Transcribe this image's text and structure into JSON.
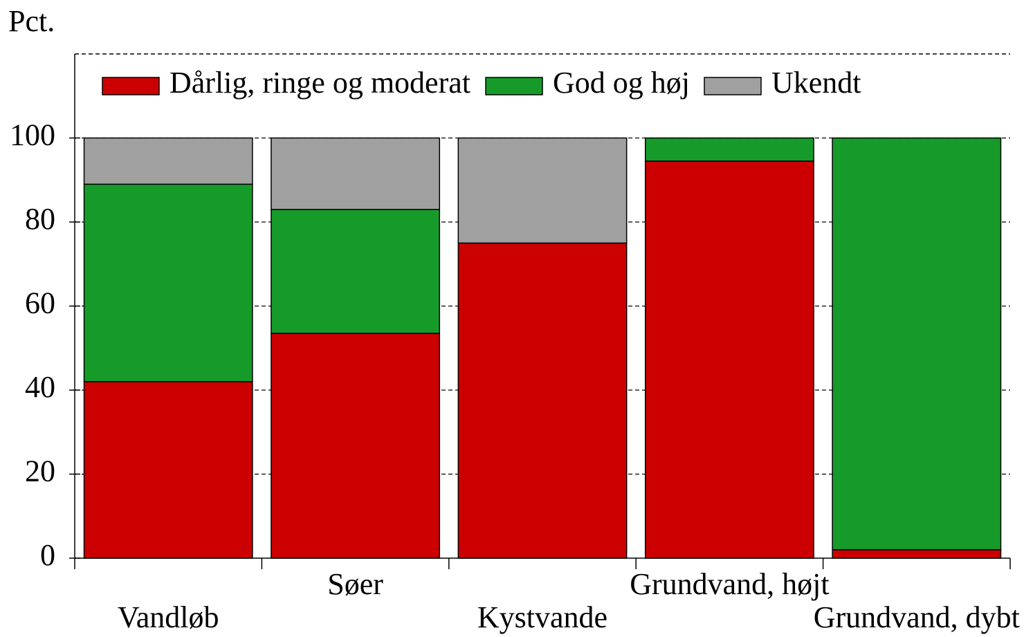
{
  "chart_data": {
    "type": "stacked_bar",
    "y_label": "Pct.",
    "categories": [
      "Vandløb",
      "Søer",
      "Kystvande",
      "Grundvand, højt",
      "Grundvand, dybt"
    ],
    "series": [
      {
        "name": "Dårlig, ringe og moderat",
        "color": "#cc0000",
        "values": [
          42,
          53.5,
          75,
          94.5,
          2
        ]
      },
      {
        "name": "God og høj",
        "color": "#169b2a",
        "values": [
          47,
          29.5,
          0,
          5.5,
          98
        ]
      },
      {
        "name": "Ukendt",
        "color": "#a0a0a0",
        "values": [
          11,
          17,
          25,
          0,
          0
        ]
      }
    ],
    "ylim": [
      0,
      120
    ],
    "yticks": [
      0,
      20,
      40,
      60,
      80,
      100
    ],
    "grid": true,
    "legend": "top"
  }
}
